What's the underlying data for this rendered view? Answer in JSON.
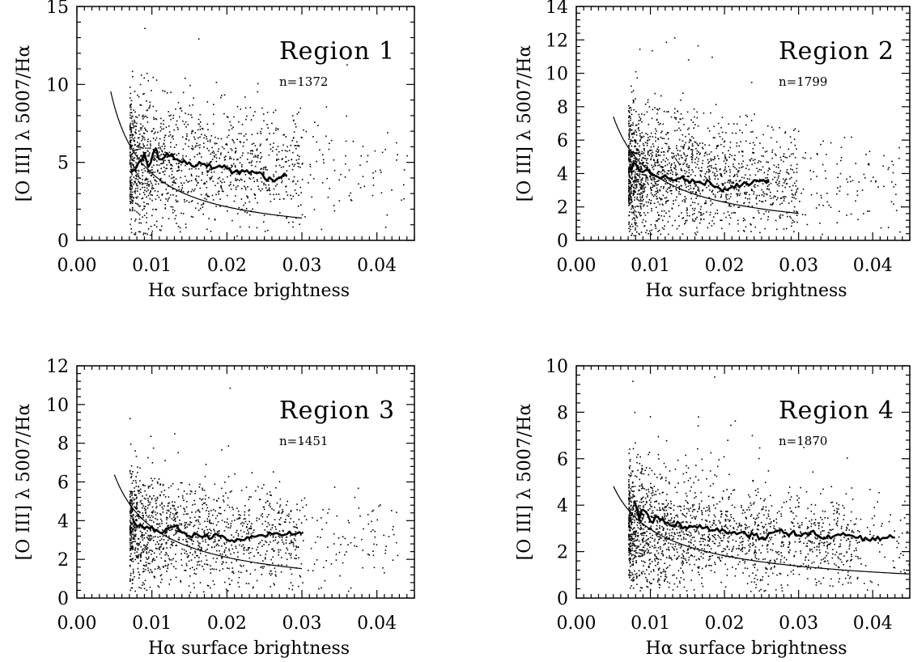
{
  "chart_data": [
    {
      "type": "scatter",
      "title": "Region 1",
      "n_label": "n=1372",
      "n": 1372,
      "xlabel": "Hα surface brightness",
      "ylabel": "[O III] λ 5007/Hα",
      "xlim": [
        0.0,
        0.045
      ],
      "ylim": [
        0,
        15
      ],
      "xticks": [
        "0.00",
        "0.01",
        "0.02",
        "0.03",
        "0.04"
      ],
      "yticks": [
        "0",
        "5",
        "10",
        "15"
      ],
      "cloud": {
        "x_range": [
          0.007,
          0.044
        ],
        "y_center": 5.0,
        "y_spread": 2.2,
        "sparse_above_x": 0.03
      },
      "fit_curve": {
        "x": [
          0.0045,
          0.03
        ],
        "a": 0.043,
        "p": 1.0
      },
      "running_median": {
        "x": [
          0.0072,
          0.008,
          0.009,
          0.0095,
          0.0105,
          0.011,
          0.012,
          0.013,
          0.014,
          0.015,
          0.016,
          0.017,
          0.018,
          0.019,
          0.02,
          0.021,
          0.022,
          0.023,
          0.024,
          0.025,
          0.026,
          0.027,
          0.028
        ],
        "y": [
          4.4,
          4.8,
          5.6,
          4.7,
          5.9,
          5.2,
          5.6,
          5.2,
          5.0,
          5.0,
          4.8,
          4.9,
          4.6,
          4.8,
          4.6,
          4.4,
          4.5,
          4.3,
          4.3,
          4.0,
          3.9,
          4.0,
          4.1
        ]
      }
    },
    {
      "type": "scatter",
      "title": "Region 2",
      "n_label": "n=1799",
      "n": 1799,
      "xlabel": "Hα surface brightness",
      "ylabel": "[O III] λ 5007/Hα",
      "xlim": [
        0.0,
        0.045
      ],
      "ylim": [
        0,
        14
      ],
      "xticks": [
        "0.00",
        "0.01",
        "0.02",
        "0.03",
        "0.04"
      ],
      "yticks": [
        "0",
        "2",
        "4",
        "6",
        "8",
        "10",
        "12",
        "14"
      ],
      "cloud": {
        "x_range": [
          0.007,
          0.044
        ],
        "y_center": 4.0,
        "y_spread": 1.9,
        "sparse_above_x": 0.03
      },
      "fit_curve": {
        "x": [
          0.005,
          0.03
        ],
        "a": 0.082,
        "p": 0.85
      },
      "running_median": {
        "x": [
          0.0072,
          0.008,
          0.009,
          0.01,
          0.011,
          0.012,
          0.013,
          0.014,
          0.015,
          0.016,
          0.017,
          0.018,
          0.019,
          0.02,
          0.021,
          0.022,
          0.023,
          0.024,
          0.025,
          0.026
        ],
        "y": [
          4.3,
          4.6,
          4.1,
          4.0,
          3.8,
          3.9,
          3.6,
          3.7,
          3.6,
          3.5,
          3.4,
          3.5,
          3.2,
          3.1,
          3.2,
          3.2,
          3.4,
          3.6,
          3.6,
          3.6
        ]
      }
    },
    {
      "type": "scatter",
      "title": "Region 3",
      "n_label": "n=1451",
      "n": 1451,
      "xlabel": "Hα surface brightness",
      "ylabel": "[O III] λ 5007/Hα",
      "xlim": [
        0.0,
        0.045
      ],
      "ylim": [
        0,
        12
      ],
      "xticks": [
        "0.00",
        "0.01",
        "0.02",
        "0.03",
        "0.04"
      ],
      "yticks": [
        "0",
        "2",
        "4",
        "6",
        "8",
        "10",
        "12"
      ],
      "cloud": {
        "x_range": [
          0.007,
          0.043
        ],
        "y_center": 3.4,
        "y_spread": 1.5,
        "sparse_above_x": 0.03
      },
      "fit_curve": {
        "x": [
          0.005,
          0.03
        ],
        "a": 0.092,
        "p": 0.8
      },
      "running_median": {
        "x": [
          0.0075,
          0.009,
          0.01,
          0.011,
          0.012,
          0.013,
          0.014,
          0.015,
          0.016,
          0.017,
          0.018,
          0.019,
          0.02,
          0.021,
          0.022,
          0.023,
          0.024,
          0.025,
          0.026,
          0.027,
          0.028,
          0.029,
          0.03
        ],
        "y": [
          4.0,
          3.6,
          3.7,
          3.4,
          3.6,
          3.7,
          3.4,
          3.2,
          3.3,
          3.2,
          3.1,
          3.2,
          3.0,
          2.9,
          3.0,
          3.1,
          3.2,
          3.2,
          3.3,
          3.3,
          3.3,
          3.3,
          3.3
        ]
      }
    },
    {
      "type": "scatter",
      "title": "Region 4",
      "n_label": "n=1870",
      "n": 1870,
      "xlabel": "Hα surface brightness",
      "ylabel": "[O III] λ 5007/Hα",
      "xlim": [
        0.0,
        0.045
      ],
      "ylim": [
        0,
        10
      ],
      "xticks": [
        "0.00",
        "0.01",
        "0.02",
        "0.03",
        "0.04"
      ],
      "yticks": [
        "0",
        "2",
        "4",
        "6",
        "8",
        "10"
      ],
      "cloud": {
        "x_range": [
          0.007,
          0.045
        ],
        "y_center": 2.9,
        "y_spread": 1.3,
        "sparse_above_x": 0.038
      },
      "fit_curve": {
        "x": [
          0.005,
          0.045
        ],
        "a": 0.118,
        "p": 0.7
      },
      "running_median": {
        "x": [
          0.0078,
          0.0085,
          0.009,
          0.01,
          0.011,
          0.012,
          0.013,
          0.014,
          0.015,
          0.016,
          0.017,
          0.018,
          0.019,
          0.02,
          0.021,
          0.022,
          0.023,
          0.024,
          0.025,
          0.026,
          0.027,
          0.028,
          0.029,
          0.03,
          0.031,
          0.032,
          0.033,
          0.034,
          0.035,
          0.036,
          0.037,
          0.038,
          0.039,
          0.04,
          0.041,
          0.042,
          0.043
        ],
        "y": [
          4.2,
          3.4,
          3.8,
          3.3,
          3.5,
          3.2,
          3.1,
          3.2,
          3.0,
          3.1,
          3.0,
          2.9,
          3.0,
          2.9,
          2.8,
          2.8,
          2.7,
          2.7,
          2.6,
          2.8,
          2.9,
          2.8,
          2.8,
          2.7,
          2.8,
          2.9,
          2.6,
          2.7,
          2.7,
          2.8,
          2.7,
          2.6,
          2.6,
          2.6,
          2.5,
          2.6,
          2.6
        ]
      }
    }
  ]
}
